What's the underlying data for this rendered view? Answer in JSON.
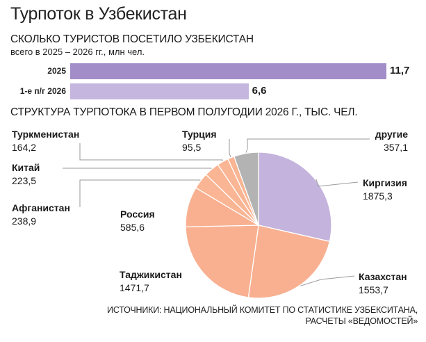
{
  "title": "Турпоток в Узбекистан",
  "section1": {
    "title": "Сколько туристов посетило Узбекистан",
    "subtitle": "всего в 2025 – 2026 гг., млн чел."
  },
  "section2": {
    "title": "Структура турпотока в первом полугодии 2026 г., тыс. чел."
  },
  "source_line1": "Источники: Национальный комитет по статистике Узбекситана,",
  "source_line2": "расчеты «Ведомостей»",
  "colors": {
    "bar_2025": "#a38dc8",
    "bar_h1": "#c5b6df",
    "kyrgyzstan": "#c4b3dc",
    "main": "#f8b091",
    "small": "#f9b594",
    "other": "#b3b3b3",
    "leader": "#9a9a9a"
  },
  "chart_data": [
    {
      "type": "bar",
      "orientation": "horizontal",
      "title": "Сколько туристов посетило Узбекистан",
      "subtitle": "всего в 2025 – 2026 гг., млн чел.",
      "categories": [
        "2025",
        "1-е п/г 2026"
      ],
      "values": [
        11.7,
        6.6
      ],
      "value_labels": [
        "11,7",
        "6,6"
      ]
    },
    {
      "type": "pie",
      "title": "Структура турпотока в первом полугодии 2026 г., тыс. чел.",
      "slices": [
        {
          "label": "Киргизия",
          "value": 1875.3,
          "value_label": "1875,3"
        },
        {
          "label": "Казахстан",
          "value": 1553.7,
          "value_label": "1553,7"
        },
        {
          "label": "Таджикистан",
          "value": 1471.7,
          "value_label": "1471,7"
        },
        {
          "label": "Россия",
          "value": 585.6,
          "value_label": "585,6"
        },
        {
          "label": "Афганистан",
          "value": 238.9,
          "value_label": "238,9"
        },
        {
          "label": "Китай",
          "value": 223.5,
          "value_label": "223,5"
        },
        {
          "label": "Туркменистан",
          "value": 164.2,
          "value_label": "164,2"
        },
        {
          "label": "Турция",
          "value": 95.5,
          "value_label": "95,5"
        },
        {
          "label": "другие",
          "value": 357.1,
          "value_label": "357,1"
        }
      ]
    }
  ]
}
